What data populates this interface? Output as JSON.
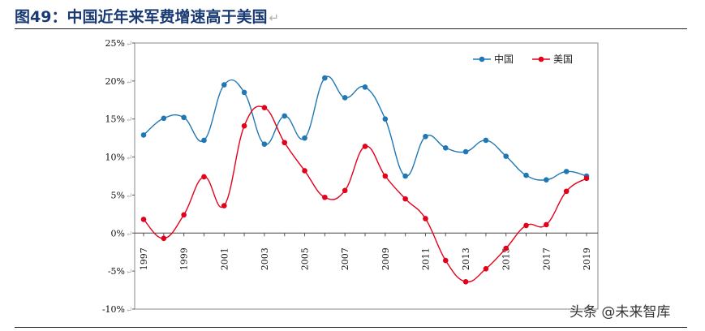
{
  "title": "图49：中国近年来军费增速高于美国",
  "return_mark": "↵",
  "watermark": "头条 @未来智库",
  "colors": {
    "china": "#1f77b4",
    "us": "#e3001b",
    "title": "#1a3a74"
  },
  "chart_data": {
    "type": "line",
    "x": [
      1997,
      1998,
      1999,
      2000,
      2001,
      2002,
      2003,
      2004,
      2005,
      2006,
      2007,
      2008,
      2009,
      2010,
      2011,
      2012,
      2013,
      2014,
      2015,
      2016,
      2017,
      2018,
      2019
    ],
    "x_tick_labels": [
      "1997",
      "1999",
      "2001",
      "2003",
      "2005",
      "2007",
      "2009",
      "2011",
      "2013",
      "2015",
      "2017",
      "2019"
    ],
    "y_tick_labels": [
      "25%",
      "20%",
      "15%",
      "10%",
      "5%",
      "0%",
      "-5%",
      "-10%"
    ],
    "ylim": [
      -10,
      25
    ],
    "y_unit": "%",
    "legend_position": "top-right",
    "series": [
      {
        "name": "中国",
        "color": "#1f77b4",
        "values": [
          12.9,
          15.1,
          15.2,
          12.2,
          19.5,
          18.5,
          11.7,
          15.4,
          12.5,
          20.4,
          17.8,
          19.2,
          15.0,
          7.5,
          12.7,
          11.2,
          10.7,
          12.2,
          10.1,
          7.6,
          7.0,
          8.1,
          7.5
        ]
      },
      {
        "name": "美国",
        "color": "#e3001b",
        "values": [
          1.8,
          -0.7,
          2.4,
          7.4,
          3.6,
          14.1,
          16.5,
          11.9,
          8.2,
          4.7,
          5.6,
          11.4,
          7.5,
          4.5,
          1.9,
          -3.6,
          -6.4,
          -4.7,
          -2.0,
          1.0,
          1.1,
          5.5,
          7.2
        ]
      }
    ]
  }
}
